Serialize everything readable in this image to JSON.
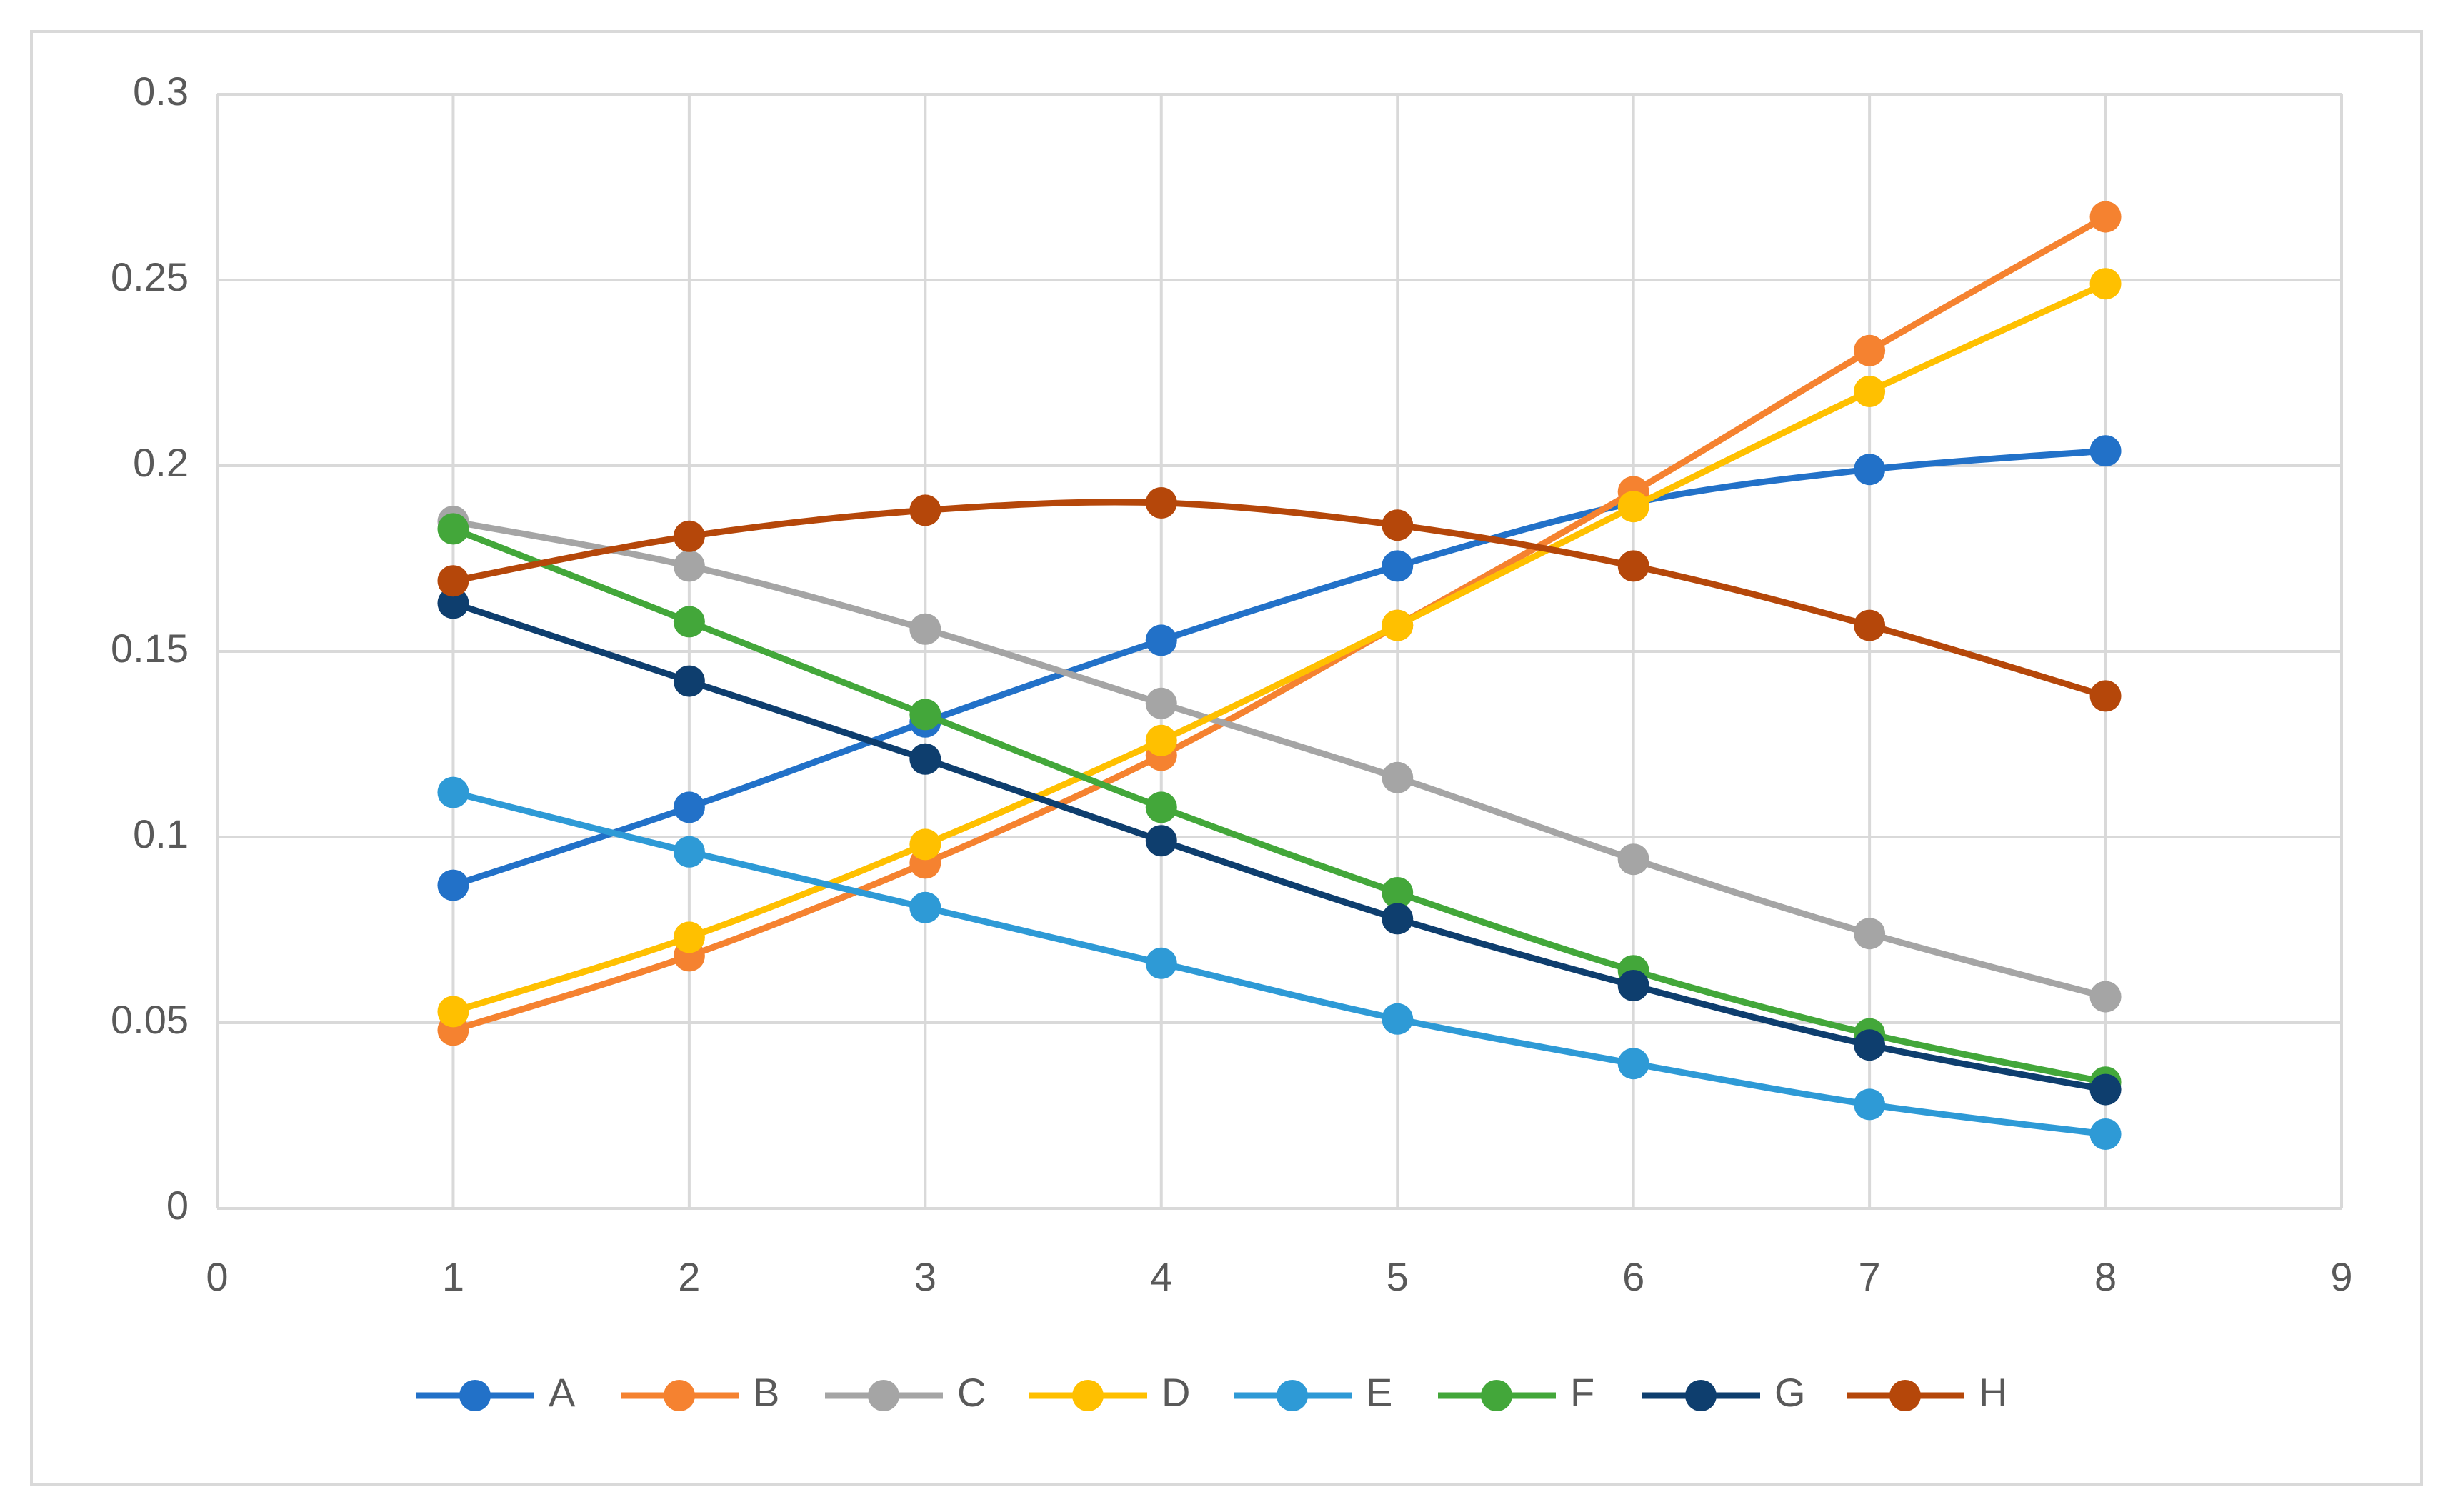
{
  "chart_data": {
    "type": "line",
    "x": [
      1,
      2,
      3,
      4,
      5,
      6,
      7,
      8
    ],
    "series": [
      {
        "name": "A",
        "color": "#2271c8",
        "values": [
          0.087,
          0.108,
          0.131,
          0.153,
          0.173,
          0.19,
          0.199,
          0.204
        ]
      },
      {
        "name": "B",
        "color": "#f58230",
        "values": [
          0.048,
          0.068,
          0.093,
          0.122,
          0.157,
          0.193,
          0.231,
          0.267
        ]
      },
      {
        "name": "C",
        "color": "#a5a5a5",
        "values": [
          0.185,
          0.173,
          0.156,
          0.136,
          0.116,
          0.094,
          0.074,
          0.057
        ]
      },
      {
        "name": "D",
        "color": "#ffc000",
        "values": [
          0.053,
          0.073,
          0.098,
          0.126,
          0.157,
          0.189,
          0.22,
          0.249
        ]
      },
      {
        "name": "E",
        "color": "#2e9ad6",
        "values": [
          0.112,
          0.096,
          0.081,
          0.066,
          0.051,
          0.039,
          0.028,
          0.02
        ]
      },
      {
        "name": "F",
        "color": "#43a73a",
        "values": [
          0.183,
          0.158,
          0.133,
          0.108,
          0.085,
          0.064,
          0.047,
          0.034
        ]
      },
      {
        "name": "G",
        "color": "#0e3e6e",
        "values": [
          0.163,
          0.142,
          0.121,
          0.099,
          0.078,
          0.06,
          0.044,
          0.032
        ]
      },
      {
        "name": "H",
        "color": "#b5470a",
        "values": [
          0.169,
          0.181,
          0.188,
          0.19,
          0.184,
          0.173,
          0.157,
          0.138
        ]
      }
    ],
    "xlim": [
      0,
      9
    ],
    "xticks": [
      0,
      1,
      2,
      3,
      4,
      5,
      6,
      7,
      8,
      9
    ],
    "ylim": [
      0,
      0.3
    ],
    "yticks": [
      0,
      0.05,
      0.1,
      0.15,
      0.2,
      0.25,
      0.3
    ],
    "grid": true,
    "smooth": true,
    "legend": "bottom"
  }
}
